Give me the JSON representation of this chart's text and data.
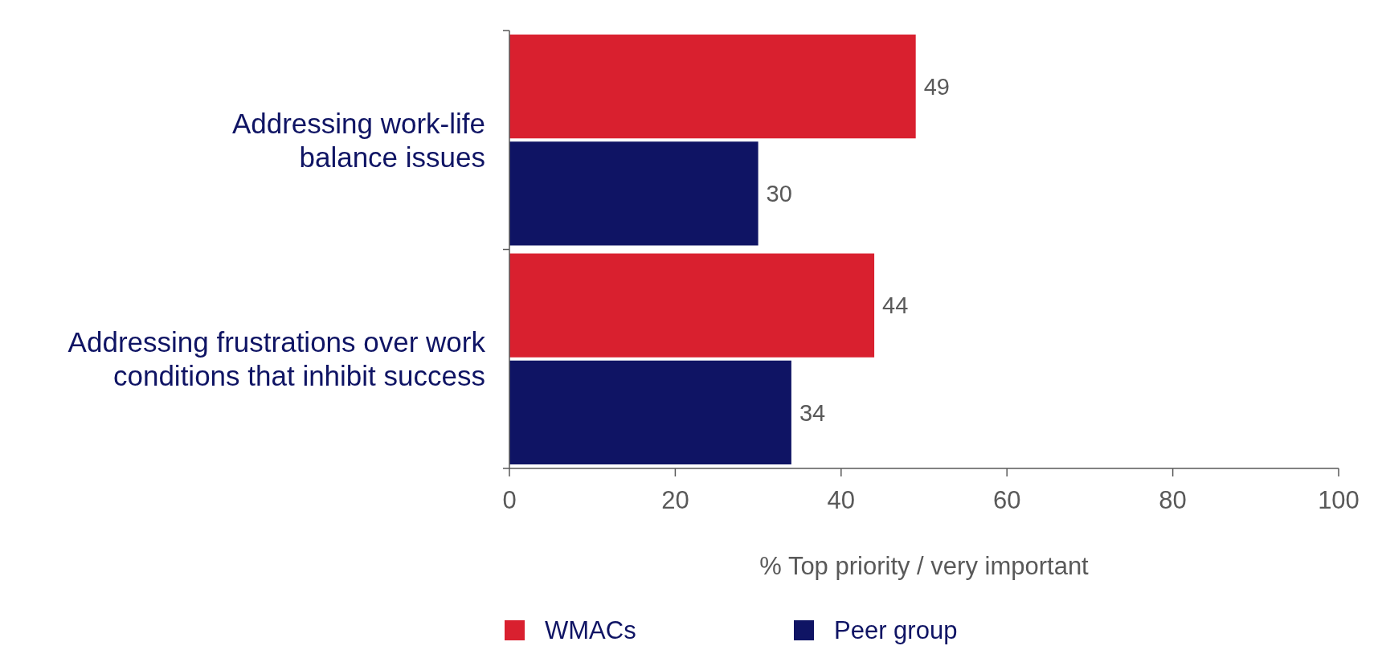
{
  "chart_data": {
    "type": "bar",
    "orientation": "horizontal",
    "categories": [
      "Addressing work-life balance issues",
      "Addressing frustrations over work conditions that inhibit success"
    ],
    "series": [
      {
        "name": "WMACs",
        "color": "#d9202f",
        "values": [
          49,
          44
        ]
      },
      {
        "name": "Peer group",
        "color": "#0f1464",
        "values": [
          30,
          34
        ]
      }
    ],
    "xlabel": "% Top priority / very important",
    "xlim": [
      0,
      100
    ],
    "xticks": [
      0,
      20,
      40,
      60,
      80,
      100
    ],
    "data_labels": true,
    "legend": "bottom",
    "grid": false
  }
}
